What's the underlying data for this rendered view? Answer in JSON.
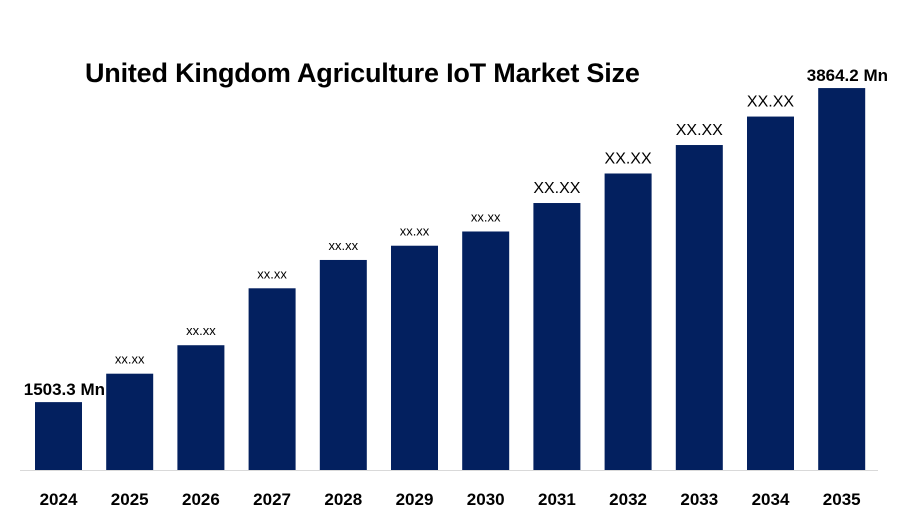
{
  "chart_data": {
    "type": "bar",
    "title": "United Kingdom Agriculture IoT Market Size",
    "xlabel": "",
    "ylabel": "",
    "categories": [
      "2024",
      "2025",
      "2026",
      "2027",
      "2028",
      "2029",
      "2030",
      "2031",
      "2032",
      "2033",
      "2034",
      "2035"
    ],
    "values": [
      1503.3,
      1717,
      1931,
      2359,
      2572,
      2679,
      2786,
      3000,
      3222,
      3436,
      3650,
      3864.2
    ],
    "data_labels": [
      "1503.3 Mn",
      "xx.xx",
      "xx.xx",
      "xx.xx",
      "xx.xx",
      "xx.xx",
      "xx.xx",
      "XX.XX",
      "XX.XX",
      "XX.XX",
      "XX.XX",
      "3864.2 Mn"
    ],
    "unit": "Mn",
    "ylim": [
      993,
      4000
    ],
    "grid": false,
    "legend": "none",
    "bar_color": "#03205F"
  }
}
